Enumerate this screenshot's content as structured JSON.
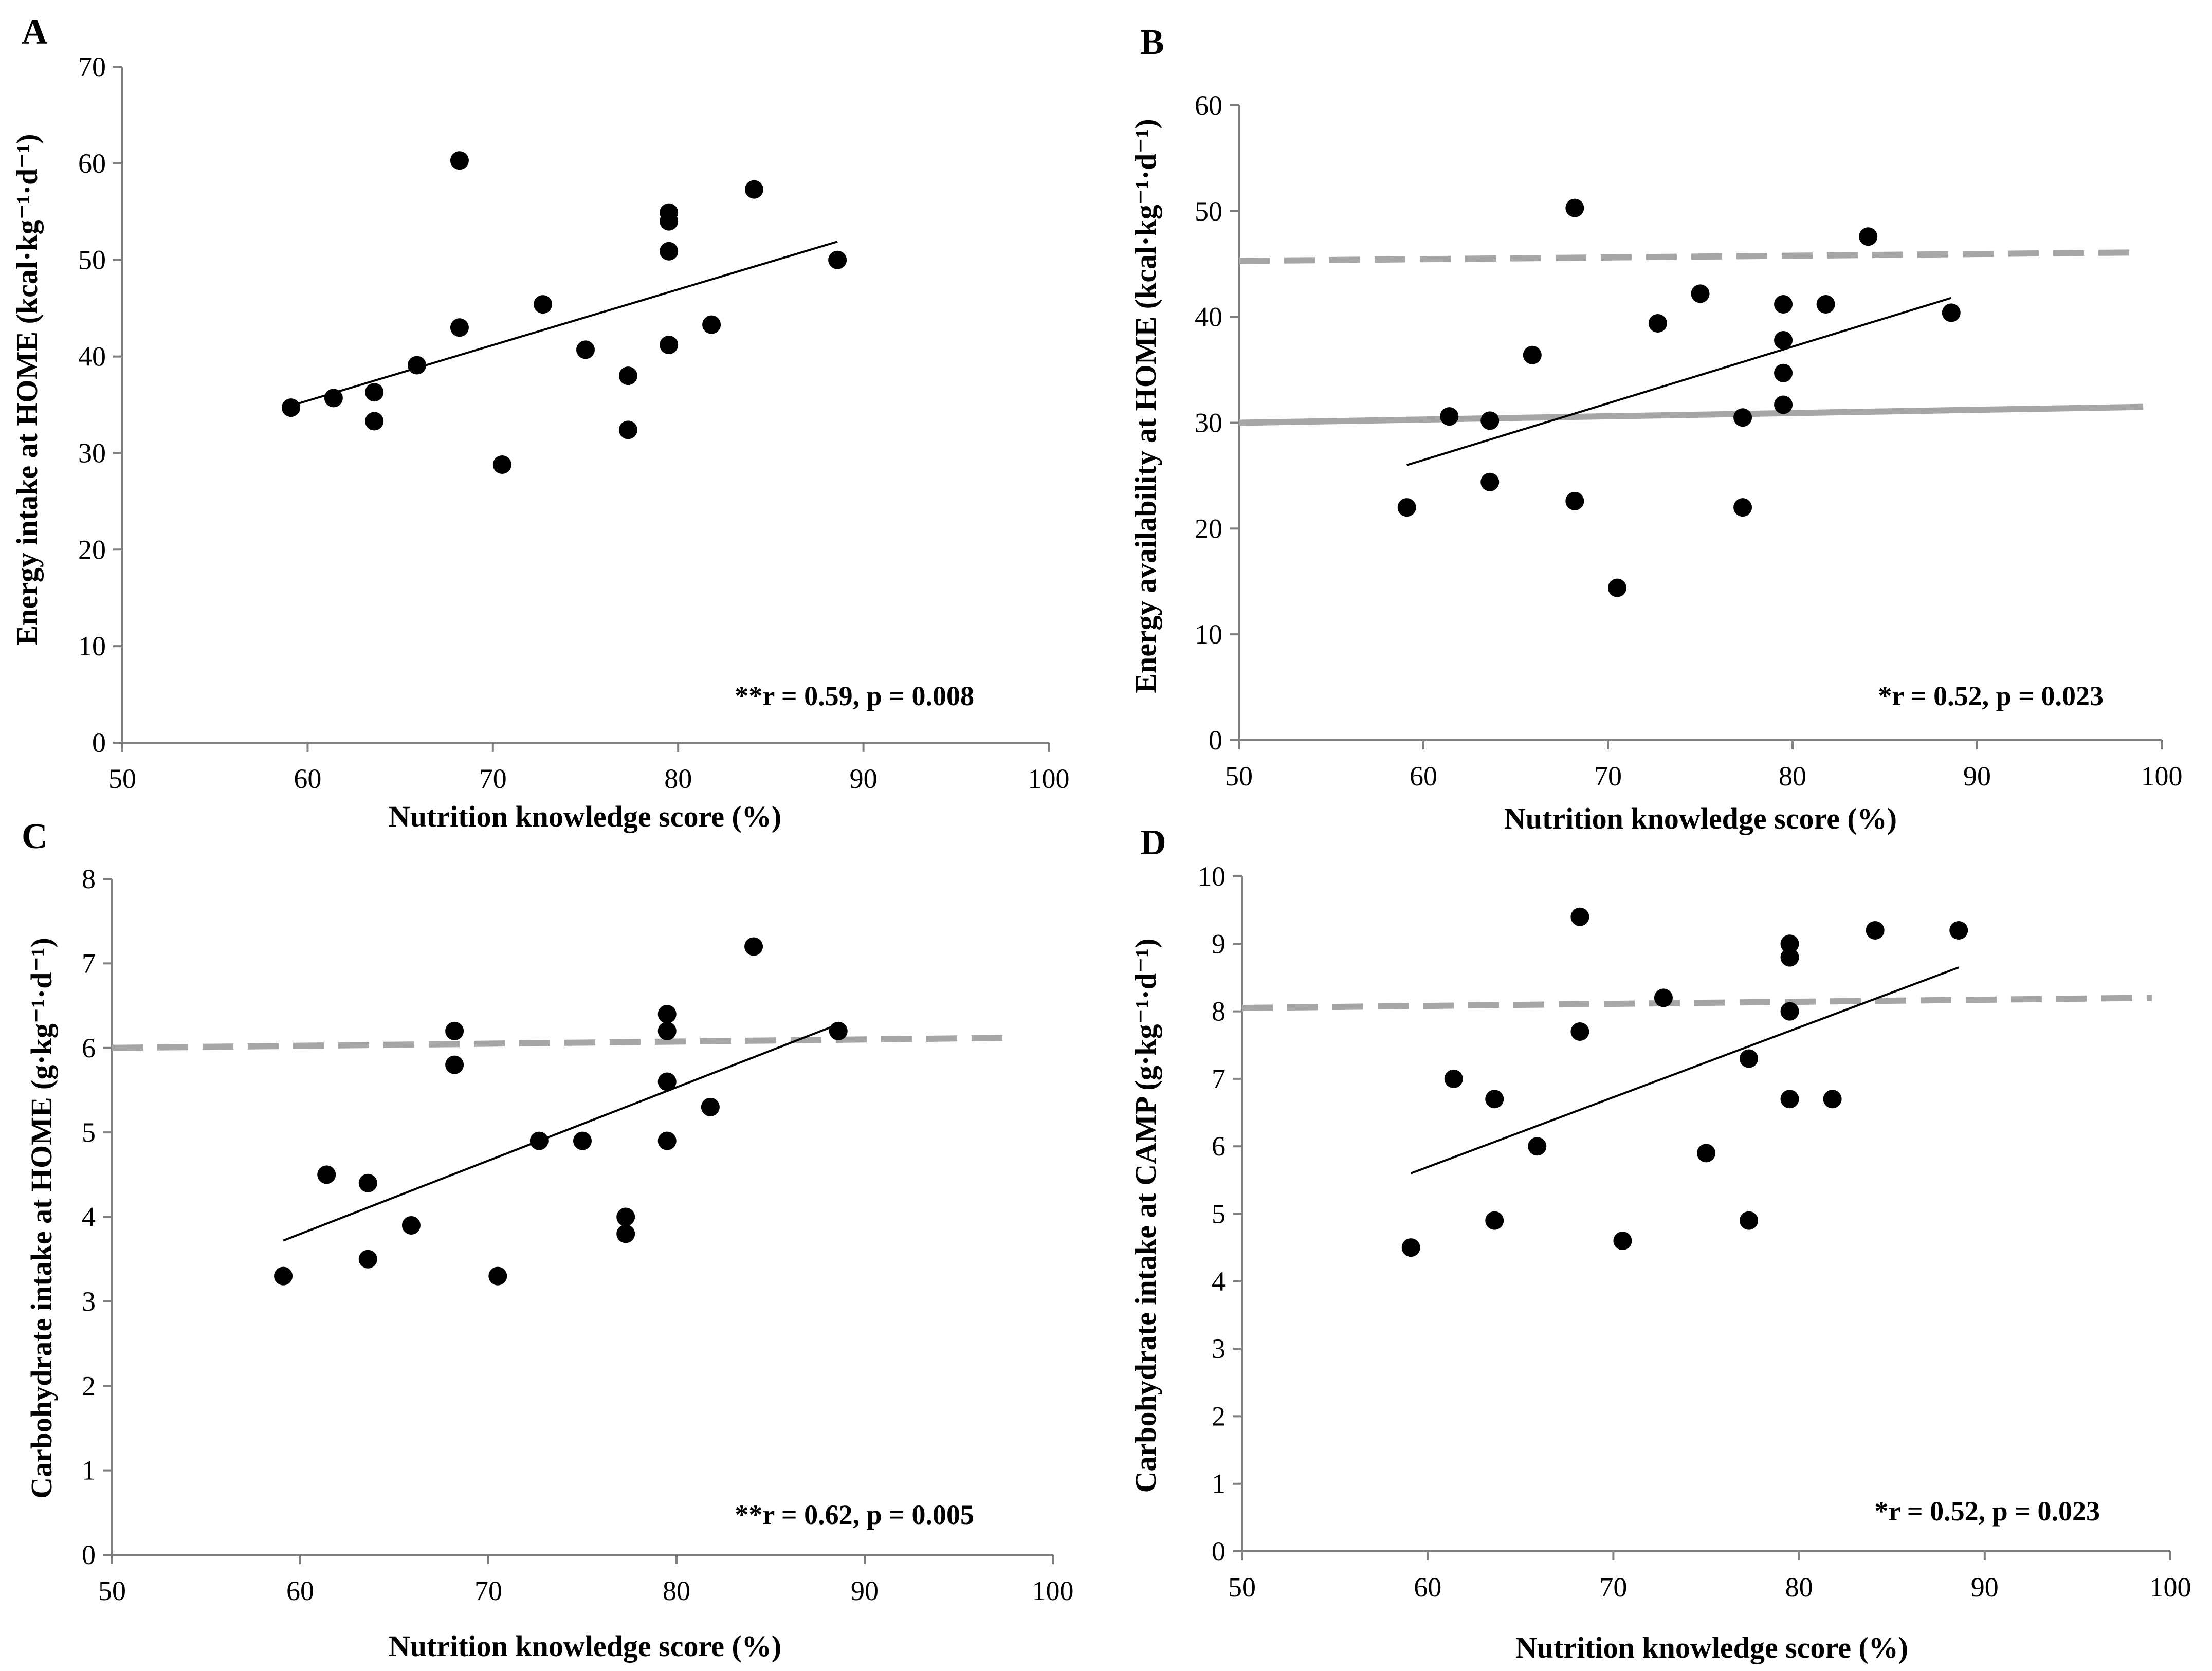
{
  "chart_data": [
    {
      "panel": "A",
      "type": "scatter",
      "xlabel": "Nutrition knowledge score (%)",
      "ylabel": "Energy intake at HOME (kcal·kg⁻¹·d⁻¹)",
      "xlim": [
        50,
        100
      ],
      "ylim": [
        0,
        70
      ],
      "xticks": [
        50,
        60,
        70,
        80,
        90,
        100
      ],
      "yticks": [
        0,
        10,
        20,
        30,
        40,
        50,
        60,
        70
      ],
      "annotation": "**r = 0.59, p = 0.008",
      "points": [
        [
          59.1,
          34.7
        ],
        [
          61.4,
          35.7
        ],
        [
          63.6,
          36.3
        ],
        [
          63.6,
          33.3
        ],
        [
          65.9,
          39.1
        ],
        [
          68.2,
          60.3
        ],
        [
          68.2,
          43.0
        ],
        [
          70.5,
          28.8
        ],
        [
          72.7,
          45.4
        ],
        [
          75.0,
          40.7
        ],
        [
          77.3,
          38.0
        ],
        [
          77.3,
          32.4
        ],
        [
          79.5,
          54.9
        ],
        [
          79.5,
          54.0
        ],
        [
          79.5,
          50.9
        ],
        [
          79.5,
          41.2
        ],
        [
          81.8,
          43.3
        ],
        [
          84.1,
          57.3
        ],
        [
          88.6,
          50.0
        ]
      ],
      "trendline": [
        [
          59.1,
          34.9
        ],
        [
          88.6,
          51.9
        ]
      ],
      "reference_lines": []
    },
    {
      "panel": "B",
      "type": "scatter",
      "xlabel": "Nutrition knowledge score (%)",
      "ylabel": "Energy availability at HOME (kcal·kg⁻¹·d⁻¹)",
      "xlim": [
        50,
        100
      ],
      "ylim": [
        0,
        60
      ],
      "xticks": [
        50,
        60,
        70,
        80,
        90,
        100
      ],
      "yticks": [
        0,
        10,
        20,
        30,
        40,
        50,
        60
      ],
      "annotation": "*r = 0.52, p = 0.023",
      "points": [
        [
          59.1,
          22.0
        ],
        [
          61.4,
          30.6
        ],
        [
          63.6,
          30.2
        ],
        [
          63.6,
          24.4
        ],
        [
          65.9,
          36.4
        ],
        [
          68.2,
          50.3
        ],
        [
          68.2,
          22.6
        ],
        [
          70.5,
          14.4
        ],
        [
          72.7,
          39.4
        ],
        [
          75.0,
          42.2
        ],
        [
          77.3,
          30.5
        ],
        [
          77.3,
          22.0
        ],
        [
          79.5,
          41.2
        ],
        [
          79.5,
          37.8
        ],
        [
          79.5,
          34.7
        ],
        [
          79.5,
          31.7
        ],
        [
          81.8,
          41.2
        ],
        [
          84.1,
          47.6
        ],
        [
          88.6,
          40.4
        ]
      ],
      "trendline": [
        [
          59.1,
          26.0
        ],
        [
          88.6,
          41.8
        ]
      ],
      "reference_lines": [
        {
          "style": "dashed",
          "from": [
            50,
            45.3
          ],
          "to": [
            99,
            46.1
          ]
        },
        {
          "style": "solid",
          "from": [
            50,
            30.0
          ],
          "to": [
            99,
            31.5
          ]
        }
      ]
    },
    {
      "panel": "C",
      "type": "scatter",
      "xlabel": "Nutrition knowledge score (%)",
      "ylabel": "Carbohydrate intake at HOME (g·kg⁻¹·d⁻¹)",
      "xlim": [
        50,
        100
      ],
      "ylim": [
        0,
        8
      ],
      "xticks": [
        50,
        60,
        70,
        80,
        90,
        100
      ],
      "yticks": [
        0,
        1,
        2,
        3,
        4,
        5,
        6,
        7,
        8
      ],
      "annotation": "**r = 0.62, p = 0.005",
      "points": [
        [
          59.1,
          3.3
        ],
        [
          61.4,
          4.5
        ],
        [
          63.6,
          4.4
        ],
        [
          63.6,
          3.5
        ],
        [
          65.9,
          3.9
        ],
        [
          68.2,
          6.2
        ],
        [
          68.2,
          5.8
        ],
        [
          70.5,
          3.3
        ],
        [
          72.7,
          4.9
        ],
        [
          75.0,
          4.9
        ],
        [
          77.3,
          4.0
        ],
        [
          77.3,
          3.8
        ],
        [
          79.5,
          6.4
        ],
        [
          79.5,
          6.2
        ],
        [
          79.5,
          5.6
        ],
        [
          79.5,
          4.9
        ],
        [
          81.8,
          5.3
        ],
        [
          84.1,
          7.2
        ],
        [
          88.6,
          6.2
        ]
      ],
      "trendline": [
        [
          59.1,
          3.72
        ],
        [
          88.6,
          6.28
        ]
      ],
      "reference_lines": [
        {
          "style": "dashed",
          "from": [
            50,
            6.0
          ],
          "to": [
            98,
            6.12
          ]
        }
      ]
    },
    {
      "panel": "D",
      "type": "scatter",
      "xlabel": "Nutrition knowledge score (%)",
      "ylabel": "Carbohydrate intake at CAMP (g·kg⁻¹·d⁻¹)",
      "xlim": [
        50,
        100
      ],
      "ylim": [
        0,
        10
      ],
      "xticks": [
        50,
        60,
        70,
        80,
        90,
        100
      ],
      "yticks": [
        0,
        1,
        2,
        3,
        4,
        5,
        6,
        7,
        8,
        9,
        10
      ],
      "annotation": "*r = 0.52, p = 0.023",
      "points": [
        [
          59.1,
          4.5
        ],
        [
          61.4,
          7.0
        ],
        [
          63.6,
          6.7
        ],
        [
          63.6,
          4.9
        ],
        [
          65.9,
          6.0
        ],
        [
          68.2,
          9.4
        ],
        [
          68.2,
          7.7
        ],
        [
          70.5,
          4.6
        ],
        [
          72.7,
          8.2
        ],
        [
          75.0,
          5.9
        ],
        [
          77.3,
          7.3
        ],
        [
          77.3,
          4.9
        ],
        [
          79.5,
          9.0
        ],
        [
          79.5,
          8.8
        ],
        [
          79.5,
          8.0
        ],
        [
          79.5,
          6.7
        ],
        [
          81.8,
          6.7
        ],
        [
          84.1,
          9.2
        ],
        [
          88.6,
          9.2
        ]
      ],
      "trendline": [
        [
          59.1,
          5.6
        ],
        [
          88.6,
          8.65
        ]
      ],
      "reference_lines": [
        {
          "style": "dashed",
          "from": [
            50,
            8.05
          ],
          "to": [
            99,
            8.2
          ]
        }
      ]
    }
  ]
}
